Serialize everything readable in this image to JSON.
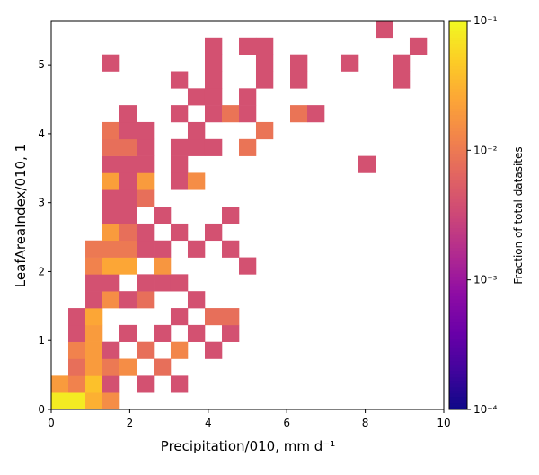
{
  "chart_data": {
    "type": "heatmap",
    "xlabel": "Precipitation/010,  mm d⁻¹",
    "ylabel": "LeafAreaIndex/010,  1",
    "colorbar_label": "Fraction of total datasites",
    "colormap": "plasma",
    "color_scale": "log",
    "clim": [
      0.0001,
      0.1
    ],
    "cticks": [
      {
        "value": 0.0001,
        "label": "10⁻⁴"
      },
      {
        "value": 0.001,
        "label": "10⁻³"
      },
      {
        "value": 0.01,
        "label": "10⁻²"
      },
      {
        "value": 0.1,
        "label": "10⁻¹"
      }
    ],
    "xlim": [
      0,
      10
    ],
    "xticks": [
      0,
      2,
      4,
      6,
      8,
      10
    ],
    "ylim": [
      0,
      5.64
    ],
    "yticks": [
      0,
      1,
      2,
      3,
      4,
      5
    ],
    "xbins": [
      0,
      0.435,
      0.87,
      1.304,
      1.739,
      2.174,
      2.609,
      3.043,
      3.478,
      3.913,
      4.348,
      4.783,
      5.217,
      5.652,
      6.087,
      6.522,
      6.957,
      7.391,
      7.826,
      8.261,
      8.696,
      9.13,
      9.565,
      10
    ],
    "ybins": [
      0,
      0.245,
      0.49,
      0.736,
      0.981,
      1.226,
      1.471,
      1.717,
      1.962,
      2.207,
      2.452,
      2.697,
      2.943,
      3.188,
      3.433,
      3.678,
      3.923,
      4.169,
      4.414,
      4.659,
      4.904,
      5.149,
      5.395,
      5.64
    ],
    "z": [
      [
        0.08,
        0.08,
        0.03,
        0.015,
        null,
        null,
        null,
        null,
        null,
        null,
        null,
        null,
        null,
        null,
        null,
        null,
        null,
        null,
        null,
        null,
        null,
        null,
        null
      ],
      [
        0.02,
        0.012,
        0.04,
        0.004,
        null,
        0.004,
        null,
        0.004,
        null,
        null,
        null,
        null,
        null,
        null,
        null,
        null,
        null,
        null,
        null,
        null,
        null,
        null,
        null
      ],
      [
        null,
        0.008,
        0.02,
        0.01,
        0.015,
        null,
        0.008,
        null,
        null,
        null,
        null,
        null,
        null,
        null,
        null,
        null,
        null,
        null,
        null,
        null,
        null,
        null,
        null
      ],
      [
        null,
        0.012,
        0.02,
        0.004,
        null,
        0.008,
        null,
        0.013,
        null,
        0.004,
        null,
        null,
        null,
        null,
        null,
        null,
        null,
        null,
        null,
        null,
        null,
        null,
        null
      ],
      [
        null,
        0.004,
        0.02,
        null,
        0.004,
        null,
        0.004,
        null,
        0.004,
        null,
        0.004,
        null,
        null,
        null,
        null,
        null,
        null,
        null,
        null,
        null,
        null,
        null,
        null
      ],
      [
        null,
        0.004,
        0.025,
        null,
        null,
        null,
        null,
        0.004,
        null,
        0.008,
        0.008,
        null,
        null,
        null,
        null,
        null,
        null,
        null,
        null,
        null,
        null,
        null,
        null
      ],
      [
        null,
        null,
        0.004,
        0.015,
        0.004,
        0.008,
        null,
        null,
        0.004,
        null,
        null,
        null,
        null,
        null,
        null,
        null,
        null,
        null,
        null,
        null,
        null,
        null,
        null
      ],
      [
        null,
        null,
        0.004,
        0.004,
        null,
        0.004,
        0.004,
        0.004,
        null,
        null,
        null,
        null,
        null,
        null,
        null,
        null,
        null,
        null,
        null,
        null,
        null,
        null,
        null
      ],
      [
        null,
        null,
        0.012,
        0.025,
        0.025,
        null,
        0.018,
        null,
        null,
        null,
        null,
        0.004,
        null,
        null,
        null,
        null,
        null,
        null,
        null,
        null,
        null,
        null,
        null
      ],
      [
        null,
        null,
        0.01,
        0.01,
        0.01,
        0.004,
        0.004,
        null,
        0.004,
        null,
        0.004,
        null,
        null,
        null,
        null,
        null,
        null,
        null,
        null,
        null,
        null,
        null,
        null
      ],
      [
        null,
        null,
        null,
        0.02,
        0.008,
        0.004,
        null,
        0.004,
        null,
        0.004,
        null,
        null,
        null,
        null,
        null,
        null,
        null,
        null,
        null,
        null,
        null,
        null,
        null
      ],
      [
        null,
        null,
        null,
        0.004,
        0.004,
        null,
        0.004,
        null,
        null,
        null,
        0.004,
        null,
        null,
        null,
        null,
        null,
        null,
        null,
        null,
        null,
        null,
        null,
        null
      ],
      [
        null,
        null,
        null,
        0.004,
        0.004,
        0.008,
        null,
        null,
        null,
        null,
        null,
        null,
        null,
        null,
        null,
        null,
        null,
        null,
        null,
        null,
        null,
        null,
        null
      ],
      [
        null,
        null,
        null,
        0.022,
        0.004,
        0.02,
        null,
        0.004,
        0.015,
        null,
        null,
        null,
        null,
        null,
        null,
        null,
        null,
        null,
        null,
        null,
        null,
        null,
        null
      ],
      [
        null,
        null,
        null,
        0.004,
        0.004,
        0.004,
        null,
        0.004,
        null,
        null,
        null,
        null,
        null,
        null,
        null,
        null,
        null,
        null,
        0.004,
        null,
        null,
        null,
        null
      ],
      [
        null,
        null,
        null,
        0.008,
        0.008,
        0.004,
        null,
        0.004,
        0.004,
        0.004,
        null,
        0.009,
        null,
        null,
        null,
        null,
        null,
        null,
        null,
        null,
        null,
        null,
        null
      ],
      [
        null,
        null,
        null,
        0.009,
        0.004,
        0.004,
        null,
        null,
        0.004,
        null,
        null,
        null,
        0.009,
        null,
        null,
        null,
        null,
        null,
        null,
        null,
        null,
        null,
        null
      ],
      [
        null,
        null,
        null,
        null,
        0.004,
        null,
        null,
        0.004,
        null,
        0.004,
        0.009,
        0.004,
        null,
        null,
        0.009,
        0.004,
        null,
        null,
        null,
        null,
        null,
        null,
        null
      ],
      [
        null,
        null,
        null,
        null,
        null,
        null,
        null,
        null,
        0.004,
        0.004,
        null,
        0.004,
        null,
        null,
        null,
        null,
        null,
        null,
        null,
        null,
        null,
        null,
        null
      ],
      [
        null,
        null,
        null,
        null,
        null,
        null,
        null,
        0.004,
        null,
        0.004,
        null,
        null,
        0.004,
        null,
        0.004,
        null,
        null,
        null,
        null,
        null,
        0.004,
        null,
        null
      ],
      [
        null,
        null,
        null,
        0.004,
        null,
        null,
        null,
        null,
        null,
        0.004,
        null,
        null,
        0.004,
        null,
        0.004,
        null,
        null,
        0.004,
        null,
        null,
        0.004,
        null,
        null
      ],
      [
        null,
        null,
        null,
        null,
        null,
        null,
        null,
        null,
        null,
        0.004,
        null,
        0.004,
        0.004,
        null,
        null,
        null,
        null,
        null,
        null,
        null,
        null,
        0.004,
        null
      ],
      [
        null,
        null,
        null,
        null,
        null,
        null,
        null,
        null,
        null,
        null,
        null,
        null,
        null,
        null,
        null,
        null,
        null,
        null,
        null,
        0.004,
        null,
        null,
        null
      ]
    ]
  }
}
